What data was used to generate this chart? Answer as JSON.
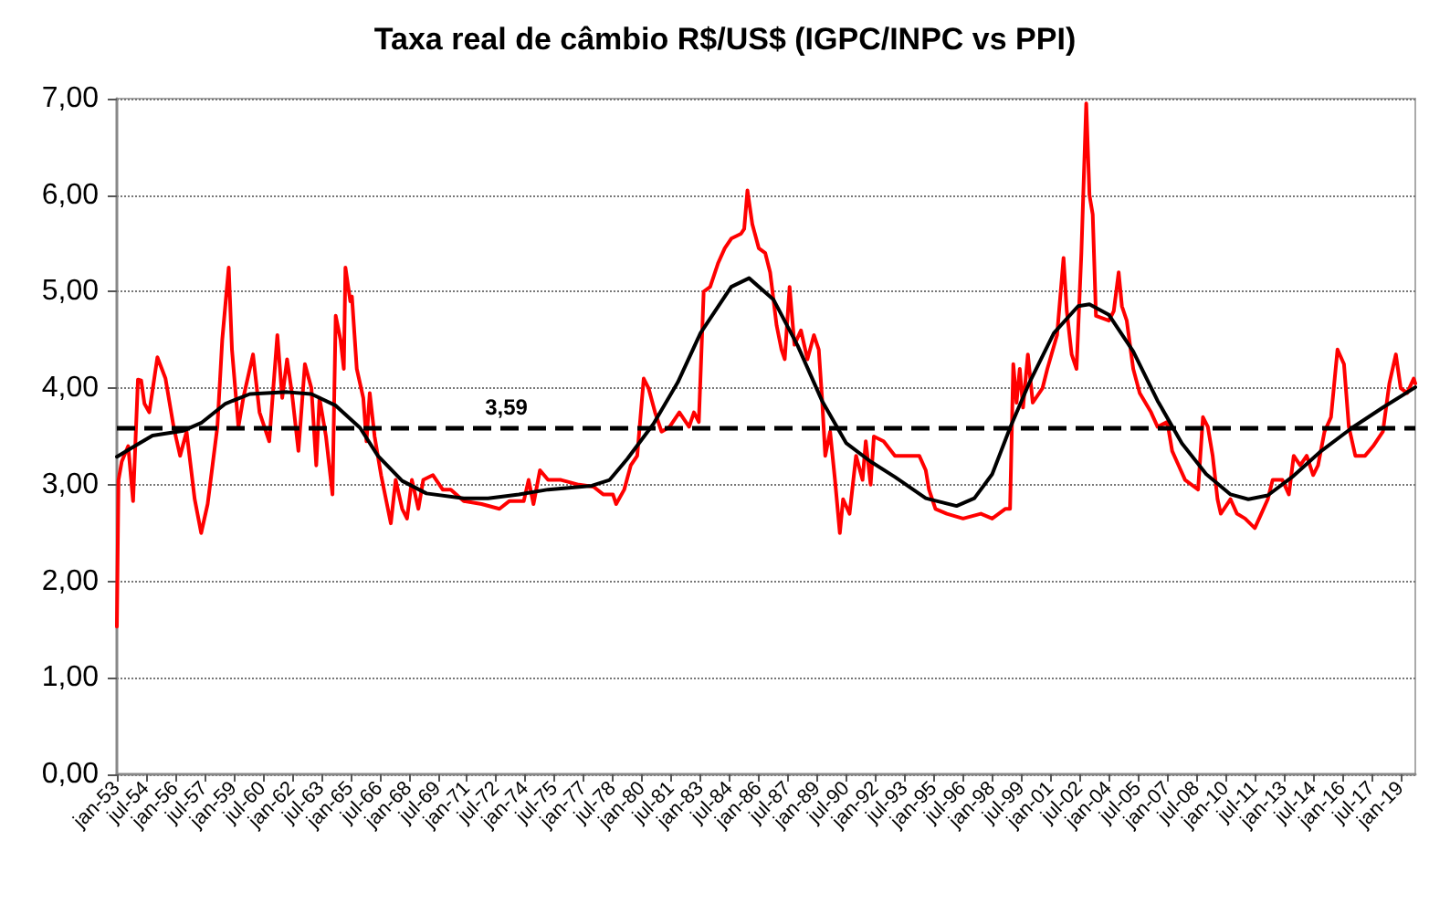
{
  "chart_data": {
    "type": "line",
    "title": "Taxa real de câmbio R$/US$ (IGPC/INPC vs PPI)",
    "xlim": [
      "1953-01",
      "2019-10"
    ],
    "xticks": [
      {
        "value": "1953-01",
        "label": "jan-53"
      },
      {
        "value": "1954-07",
        "label": "jul-54"
      },
      {
        "value": "1956-01",
        "label": "jan-56"
      },
      {
        "value": "1957-07",
        "label": "jul-57"
      },
      {
        "value": "1959-01",
        "label": "jan-59"
      },
      {
        "value": "1960-07",
        "label": "jul-60"
      },
      {
        "value": "1962-01",
        "label": "jan-62"
      },
      {
        "value": "1963-07",
        "label": "jul-63"
      },
      {
        "value": "1965-01",
        "label": "jan-65"
      },
      {
        "value": "1966-07",
        "label": "jul-66"
      },
      {
        "value": "1968-01",
        "label": "jan-68"
      },
      {
        "value": "1969-07",
        "label": "jul-69"
      },
      {
        "value": "1971-01",
        "label": "jan-71"
      },
      {
        "value": "1972-07",
        "label": "jul-72"
      },
      {
        "value": "1974-01",
        "label": "jan-74"
      },
      {
        "value": "1975-07",
        "label": "jul-75"
      },
      {
        "value": "1977-01",
        "label": "jan-77"
      },
      {
        "value": "1978-07",
        "label": "jul-78"
      },
      {
        "value": "1980-01",
        "label": "jan-80"
      },
      {
        "value": "1981-07",
        "label": "jul-81"
      },
      {
        "value": "1983-01",
        "label": "jan-83"
      },
      {
        "value": "1984-07",
        "label": "jul-84"
      },
      {
        "value": "1986-01",
        "label": "jan-86"
      },
      {
        "value": "1987-07",
        "label": "jul-87"
      },
      {
        "value": "1989-01",
        "label": "jan-89"
      },
      {
        "value": "1990-07",
        "label": "jul-90"
      },
      {
        "value": "1992-01",
        "label": "jan-92"
      },
      {
        "value": "1993-07",
        "label": "jul-93"
      },
      {
        "value": "1995-01",
        "label": "jan-95"
      },
      {
        "value": "1996-07",
        "label": "jul-96"
      },
      {
        "value": "1998-01",
        "label": "jan-98"
      },
      {
        "value": "1999-07",
        "label": "jul-99"
      },
      {
        "value": "2001-01",
        "label": "jan-01"
      },
      {
        "value": "2002-07",
        "label": "jul-02"
      },
      {
        "value": "2004-01",
        "label": "jan-04"
      },
      {
        "value": "2005-07",
        "label": "jul-05"
      },
      {
        "value": "2007-01",
        "label": "jan-07"
      },
      {
        "value": "2008-07",
        "label": "jul-08"
      },
      {
        "value": "2010-01",
        "label": "jan-10"
      },
      {
        "value": "2011-07",
        "label": "jul-11"
      },
      {
        "value": "2013-01",
        "label": "jan-13"
      },
      {
        "value": "2014-07",
        "label": "jul-14"
      },
      {
        "value": "2016-01",
        "label": "jan-16"
      },
      {
        "value": "2017-07",
        "label": "jul-17"
      },
      {
        "value": "2019-01",
        "label": "jan-19"
      }
    ],
    "ylim": [
      0,
      7
    ],
    "yticks": [
      {
        "value": 0,
        "label": "0,00"
      },
      {
        "value": 1,
        "label": "1,00"
      },
      {
        "value": 2,
        "label": "2,00"
      },
      {
        "value": 3,
        "label": "3,00"
      },
      {
        "value": 4,
        "label": "4,00"
      },
      {
        "value": 5,
        "label": "5,00"
      },
      {
        "value": 6,
        "label": "6,00"
      },
      {
        "value": 7,
        "label": "7,00"
      }
    ],
    "grid": "y",
    "marker": "none",
    "line_style": "solid",
    "ref_lines": [
      {
        "axis": "y",
        "value": 3.59,
        "label": "3,59",
        "color": "#000000",
        "line_style": "dashed"
      }
    ],
    "series": [
      {
        "color": "#ff0000",
        "x": [
          "1953-01",
          "1953-02",
          "1953-04",
          "1953-08",
          "1953-11",
          "1954-02",
          "1954-04",
          "1954-06",
          "1954-09",
          "1955-02",
          "1955-07",
          "1955-12",
          "1956-04",
          "1956-08",
          "1957-01",
          "1957-05",
          "1957-09",
          "1958-03",
          "1958-06",
          "1958-10",
          "1958-12",
          "1959-04",
          "1959-07",
          "1960-01",
          "1960-05",
          "1960-11",
          "1961-04",
          "1961-07",
          "1961-10",
          "1962-01",
          "1962-05",
          "1962-09",
          "1963-01",
          "1963-04",
          "1963-06",
          "1963-10",
          "1964-02",
          "1964-04",
          "1964-07",
          "1964-09",
          "1964-10",
          "1965-01",
          "1965-02",
          "1965-05",
          "1965-09",
          "1965-11",
          "1966-01",
          "1966-04",
          "1966-08",
          "1967-02",
          "1967-05",
          "1967-09",
          "1967-12",
          "1968-03",
          "1968-07",
          "1968-10",
          "1969-04",
          "1969-10",
          "1970-03",
          "1970-11",
          "1971-10",
          "1972-09",
          "1973-03",
          "1973-12",
          "1974-03",
          "1974-06",
          "1974-10",
          "1975-03",
          "1975-11",
          "1976-10",
          "1977-07",
          "1978-01",
          "1978-07",
          "1978-09",
          "1979-02",
          "1979-06",
          "1979-10",
          "1980-02",
          "1980-05",
          "1980-09",
          "1981-01",
          "1981-06",
          "1981-12",
          "1982-06",
          "1982-09",
          "1982-12",
          "1983-03",
          "1983-07",
          "1983-12",
          "1984-04",
          "1984-08",
          "1985-02",
          "1985-04",
          "1985-06",
          "1985-09",
          "1986-01",
          "1986-05",
          "1986-08",
          "1986-12",
          "1987-03",
          "1987-05",
          "1987-08",
          "1987-11",
          "1988-03",
          "1988-07",
          "1988-11",
          "1989-02",
          "1989-04",
          "1989-06",
          "1989-09",
          "1989-12",
          "1990-03",
          "1990-05",
          "1990-09",
          "1991-01",
          "1991-05",
          "1991-07",
          "1991-10",
          "1991-12",
          "1992-06",
          "1993-01",
          "1993-09",
          "1994-04",
          "1994-08",
          "1994-10",
          "1995-02",
          "1995-09",
          "1996-07",
          "1997-06",
          "1998-01",
          "1998-09",
          "1998-12",
          "1999-02",
          "1999-04",
          "1999-06",
          "1999-08",
          "1999-11",
          "2000-02",
          "2000-08",
          "2000-11",
          "2001-05",
          "2001-09",
          "2001-11",
          "2002-02",
          "2002-05",
          "2002-08",
          "2002-11",
          "2003-01",
          "2003-03",
          "2003-05",
          "2004-01",
          "2004-04",
          "2004-07",
          "2004-09",
          "2004-12",
          "2005-04",
          "2005-08",
          "2006-03",
          "2006-07",
          "2007-01",
          "2007-04",
          "2007-08",
          "2007-12",
          "2008-08",
          "2008-11",
          "2009-02",
          "2009-05",
          "2009-08",
          "2009-10",
          "2010-04",
          "2010-08",
          "2011-01",
          "2011-07",
          "2011-11",
          "2012-03",
          "2012-06",
          "2012-12",
          "2013-04",
          "2013-07",
          "2013-11",
          "2014-03",
          "2014-07",
          "2014-10",
          "2015-02",
          "2015-06",
          "2015-10",
          "2016-02",
          "2016-05",
          "2016-09",
          "2017-03",
          "2017-08",
          "2018-02",
          "2018-06",
          "2018-10",
          "2019-01",
          "2019-05",
          "2019-09",
          "2019-10"
        ],
        "values": [
          1.53,
          3.05,
          3.24,
          3.4,
          2.83,
          4.09,
          4.08,
          3.84,
          3.75,
          4.32,
          4.1,
          3.6,
          3.3,
          3.55,
          2.85,
          2.5,
          2.8,
          3.6,
          4.5,
          5.25,
          4.4,
          3.6,
          3.9,
          4.35,
          3.75,
          3.45,
          4.55,
          3.9,
          4.3,
          3.95,
          3.35,
          4.25,
          4.0,
          3.2,
          3.9,
          3.5,
          2.9,
          4.75,
          4.5,
          4.2,
          5.25,
          4.9,
          4.95,
          4.2,
          3.9,
          3.45,
          3.95,
          3.5,
          3.1,
          2.6,
          3.05,
          2.75,
          2.65,
          3.05,
          2.75,
          3.05,
          3.1,
          2.95,
          2.95,
          2.83,
          2.8,
          2.75,
          2.83,
          2.83,
          3.05,
          2.8,
          3.15,
          3.05,
          3.05,
          3.0,
          2.98,
          2.9,
          2.9,
          2.8,
          2.95,
          3.2,
          3.3,
          4.1,
          4.0,
          3.75,
          3.55,
          3.6,
          3.75,
          3.6,
          3.75,
          3.65,
          5.0,
          5.05,
          5.3,
          5.45,
          5.55,
          5.6,
          5.65,
          6.05,
          5.7,
          5.45,
          5.4,
          5.2,
          4.65,
          4.4,
          4.3,
          5.05,
          4.45,
          4.6,
          4.3,
          4.55,
          4.4,
          3.9,
          3.3,
          3.55,
          3.05,
          2.5,
          2.85,
          2.7,
          3.3,
          3.05,
          3.45,
          3.0,
          3.5,
          3.45,
          3.3,
          3.3,
          3.3,
          3.15,
          2.95,
          2.75,
          2.7,
          2.65,
          2.7,
          2.65,
          2.75,
          2.75,
          4.25,
          3.85,
          4.2,
          3.8,
          4.35,
          3.85,
          4.0,
          4.2,
          4.55,
          5.35,
          4.8,
          4.35,
          4.2,
          5.4,
          6.95,
          6.0,
          5.8,
          4.75,
          4.7,
          4.8,
          5.2,
          4.85,
          4.7,
          4.2,
          3.95,
          3.75,
          3.6,
          3.65,
          3.35,
          3.2,
          3.05,
          2.95,
          3.7,
          3.6,
          3.3,
          2.85,
          2.7,
          2.85,
          2.7,
          2.65,
          2.55,
          2.7,
          2.85,
          3.05,
          3.05,
          2.9,
          3.3,
          3.2,
          3.3,
          3.1,
          3.2,
          3.55,
          3.7,
          4.4,
          4.25,
          3.6,
          3.3,
          3.3,
          3.4,
          3.55,
          4.05,
          4.35,
          4.0,
          3.95,
          4.1,
          4.05
        ]
      },
      {
        "color": "#000000",
        "x": [
          "1953-01",
          "1953-12",
          "1954-11",
          "1956-06",
          "1957-05",
          "1958-08",
          "1959-11",
          "1961-10",
          "1963-01",
          "1964-04",
          "1965-07",
          "1966-06",
          "1967-09",
          "1968-12",
          "1970-11",
          "1972-02",
          "1973-09",
          "1975-03",
          "1977-06",
          "1978-05",
          "1979-04",
          "1980-08",
          "1981-11",
          "1983-01",
          "1984-08",
          "1985-07",
          "1986-10",
          "1988-01",
          "1989-04",
          "1990-07",
          "1991-10",
          "1993-01",
          "1994-08",
          "1996-03",
          "1997-02",
          "1998-01",
          "1998-12",
          "1999-12",
          "2001-03",
          "2002-06",
          "2003-01",
          "2004-01",
          "2005-04",
          "2006-07",
          "2007-10",
          "2009-01",
          "2010-04",
          "2011-03",
          "2012-03",
          "2013-06",
          "2014-12",
          "2016-07",
          "2018-02",
          "2019-10"
        ],
        "values": [
          3.29,
          3.4,
          3.51,
          3.56,
          3.64,
          3.84,
          3.94,
          3.96,
          3.94,
          3.82,
          3.59,
          3.3,
          3.04,
          2.91,
          2.86,
          2.86,
          2.9,
          2.95,
          2.99,
          3.05,
          3.27,
          3.63,
          4.06,
          4.57,
          5.05,
          5.14,
          4.92,
          4.44,
          3.87,
          3.43,
          3.24,
          3.08,
          2.86,
          2.78,
          2.86,
          3.11,
          3.59,
          4.06,
          4.57,
          4.85,
          4.87,
          4.76,
          4.38,
          3.87,
          3.43,
          3.11,
          2.9,
          2.85,
          2.89,
          3.08,
          3.35,
          3.59,
          3.8,
          4.01
        ]
      }
    ]
  }
}
